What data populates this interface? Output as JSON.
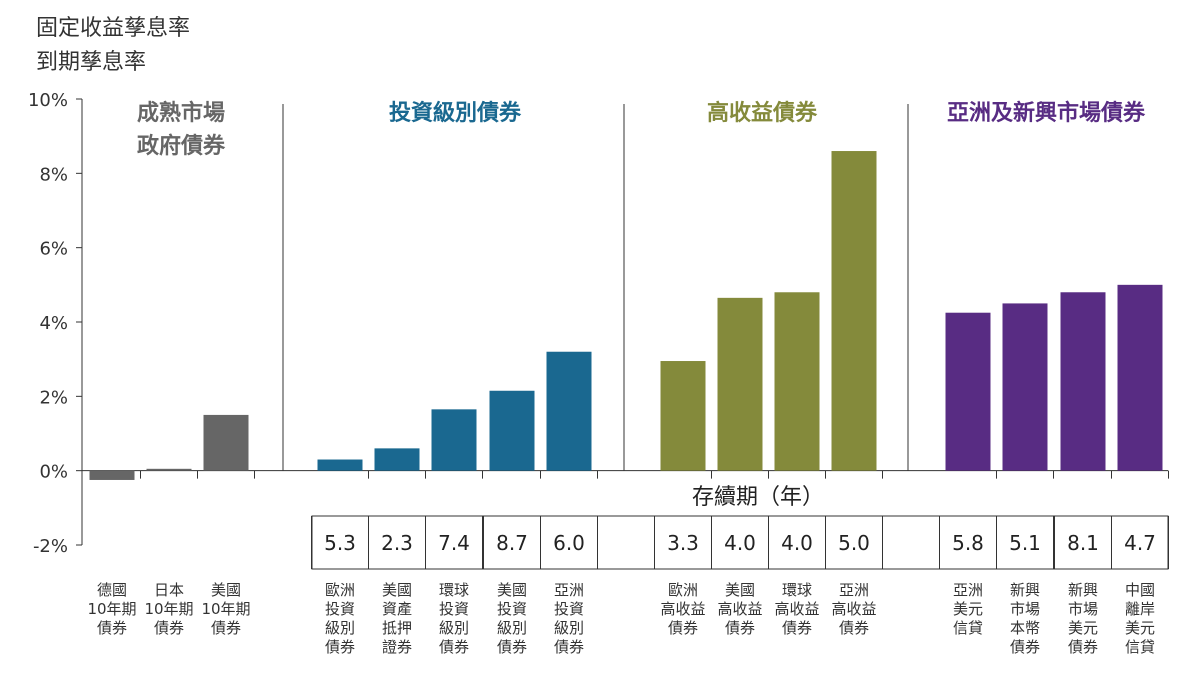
{
  "title": [
    "固定收益孳息率",
    "到期孳息率"
  ],
  "chart_data": {
    "type": "bar",
    "ylim": [
      -2,
      10
    ],
    "yticks": [
      "10%",
      "8%",
      "6%",
      "4%",
      "2%",
      "0%",
      "-2%"
    ],
    "ytick_values": [
      10,
      8,
      6,
      4,
      2,
      0,
      -2
    ],
    "duration_title": "存續期（年）",
    "colors": {
      "developed": "#666666",
      "investment_grade": "#1a6890",
      "high_yield": "#848a3b",
      "asia_em": "#582c83"
    },
    "groups": [
      {
        "name_lines": [
          "成熟市場",
          "政府債券"
        ],
        "color": "#666666",
        "bars": [
          {
            "label": [
              "德國",
              "10年期",
              "債券"
            ],
            "value": -0.25,
            "duration": null
          },
          {
            "label": [
              "日本",
              "10年期",
              "債券"
            ],
            "value": 0.05,
            "duration": null
          },
          {
            "label": [
              "美國",
              "10年期",
              "債券"
            ],
            "value": 1.5,
            "duration": null
          }
        ]
      },
      {
        "name_lines": [
          "投資級別債券"
        ],
        "color": "#1a6890",
        "bars": [
          {
            "label": [
              "歐洲",
              "投資",
              "級別",
              "債券"
            ],
            "value": 0.3,
            "duration": "5.3"
          },
          {
            "label": [
              "美國",
              "資產",
              "抵押",
              "證券"
            ],
            "value": 0.6,
            "duration": "2.3"
          },
          {
            "label": [
              "環球",
              "投資",
              "級別",
              "債券"
            ],
            "value": 1.65,
            "duration": "7.4"
          },
          {
            "label": [
              "美國",
              "投資",
              "級別",
              "債券"
            ],
            "value": 2.15,
            "duration": "8.7"
          },
          {
            "label": [
              "亞洲",
              "投資",
              "級別",
              "債券"
            ],
            "value": 3.2,
            "duration": "6.0"
          }
        ]
      },
      {
        "name_lines": [
          "高收益債券"
        ],
        "color": "#848a3b",
        "bars": [
          {
            "label": [
              "歐洲",
              "高收益",
              "債券"
            ],
            "value": 2.95,
            "duration": "3.3"
          },
          {
            "label": [
              "美國",
              "高收益",
              "債券"
            ],
            "value": 4.65,
            "duration": "4.0"
          },
          {
            "label": [
              "環球",
              "高收益",
              "債券"
            ],
            "value": 4.8,
            "duration": "4.0"
          },
          {
            "label": [
              "亞洲",
              "高收益",
              "債券"
            ],
            "value": 8.6,
            "duration": "5.0"
          }
        ]
      },
      {
        "name_lines": [
          "亞洲及新興市場債券"
        ],
        "color": "#582c83",
        "bars": [
          {
            "label": [
              "亞洲",
              "美元",
              "信貸"
            ],
            "value": 4.25,
            "duration": "5.8"
          },
          {
            "label": [
              "新興",
              "市場",
              "本幣",
              "債券"
            ],
            "value": 4.5,
            "duration": "5.1"
          },
          {
            "label": [
              "新興",
              "市場",
              "美元",
              "債券"
            ],
            "value": 4.8,
            "duration": "8.1"
          },
          {
            "label": [
              "中國",
              "離岸",
              "美元",
              "信貸"
            ],
            "value": 5.0,
            "duration": "4.7"
          }
        ]
      }
    ]
  }
}
